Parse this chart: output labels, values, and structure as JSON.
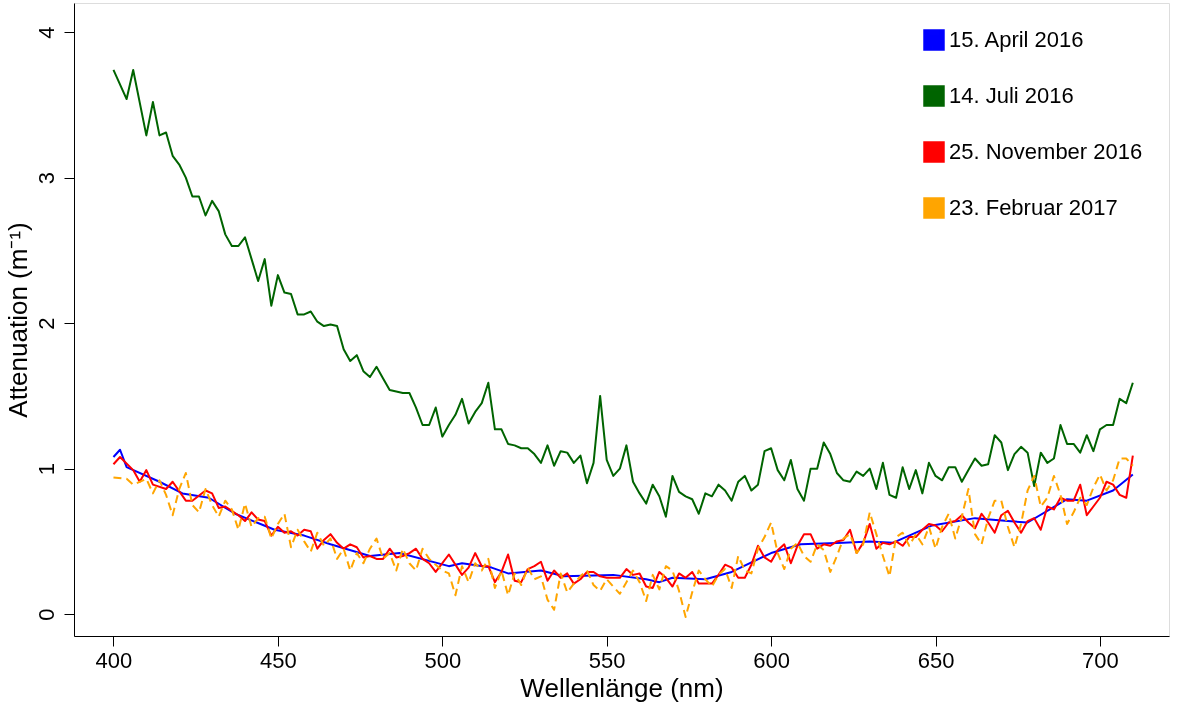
{
  "chart_data": {
    "type": "line",
    "xlabel": "Wellenlänge (nm)",
    "ylabel": "Attenuation (m⁻¹)",
    "xlim": [
      388,
      721
    ],
    "ylim": [
      -0.15,
      4.2
    ],
    "xticks": [
      400,
      450,
      500,
      550,
      600,
      650,
      700
    ],
    "yticks": [
      0,
      1,
      2,
      3,
      4
    ],
    "grid": false,
    "legend": "top right",
    "series": [
      {
        "name": "15. April 2016",
        "color": "#0000ff",
        "line_style": "solid",
        "x": [
          400,
          402,
          404,
          414,
          421,
          429,
          437,
          449,
          458,
          466,
          478,
          487,
          502,
          506,
          515,
          520,
          530,
          537,
          552,
          562,
          566,
          570,
          580,
          588,
          600,
          609,
          622,
          630,
          637,
          649,
          662,
          672,
          678,
          690,
          696,
          704,
          710
        ],
        "values": [
          1.08,
          1.13,
          1.01,
          0.91,
          0.83,
          0.8,
          0.69,
          0.58,
          0.54,
          0.48,
          0.4,
          0.42,
          0.33,
          0.35,
          0.32,
          0.28,
          0.3,
          0.26,
          0.27,
          0.24,
          0.22,
          0.25,
          0.24,
          0.29,
          0.42,
          0.48,
          0.49,
          0.5,
          0.49,
          0.61,
          0.66,
          0.64,
          0.63,
          0.79,
          0.78,
          0.85,
          0.96
        ]
      },
      {
        "name": "14. Juli 2016",
        "color": "#006400",
        "line_style": "solid",
        "x": [
          400,
          404,
          406,
          410,
          412,
          414,
          416,
          418,
          420,
          422,
          424,
          426,
          428,
          430,
          432,
          434,
          436,
          438,
          440,
          442,
          444,
          446,
          448,
          450,
          452,
          454,
          456,
          458,
          460,
          462,
          464,
          466,
          468,
          470,
          472,
          474,
          476,
          478,
          480,
          482,
          484,
          486,
          488,
          490,
          492,
          494,
          496,
          498,
          500,
          502,
          504,
          506,
          508,
          510,
          512,
          514,
          516,
          518,
          520,
          522,
          524,
          526,
          528,
          530,
          532,
          534,
          536,
          538,
          540,
          542,
          544,
          546,
          548,
          550,
          552,
          554,
          556,
          558,
          560,
          562,
          564,
          566,
          568,
          570,
          572,
          574,
          576,
          578,
          580,
          582,
          584,
          586,
          588,
          590,
          592,
          594,
          596,
          598,
          600,
          602,
          604,
          606,
          608,
          610,
          612,
          614,
          616,
          618,
          620,
          622,
          624,
          626,
          628,
          630,
          632,
          634,
          636,
          638,
          640,
          642,
          644,
          646,
          648,
          650,
          652,
          654,
          656,
          658,
          660,
          662,
          664,
          666,
          668,
          670,
          672,
          674,
          676,
          678,
          680,
          682,
          684,
          686,
          688,
          690,
          692,
          694,
          696,
          698,
          700,
          702,
          704,
          706,
          708,
          710
        ],
        "values": [
          3.74,
          3.54,
          3.74,
          3.29,
          3.52,
          3.29,
          3.31,
          3.15,
          3.09,
          3.0,
          2.87,
          2.87,
          2.74,
          2.84,
          2.77,
          2.61,
          2.53,
          2.53,
          2.59,
          2.44,
          2.29,
          2.44,
          2.12,
          2.33,
          2.21,
          2.2,
          2.06,
          2.06,
          2.08,
          2.01,
          1.98,
          1.99,
          1.98,
          1.82,
          1.74,
          1.78,
          1.67,
          1.63,
          1.7,
          1.62,
          1.54,
          1.53,
          1.52,
          1.52,
          1.42,
          1.3,
          1.3,
          1.42,
          1.22,
          1.3,
          1.37,
          1.48,
          1.31,
          1.39,
          1.45,
          1.59,
          1.27,
          1.27,
          1.17,
          1.16,
          1.14,
          1.14,
          1.1,
          1.04,
          1.16,
          1.02,
          1.12,
          1.11,
          1.04,
          1.09,
          0.9,
          1.04,
          1.5,
          1.06,
          0.95,
          1.0,
          1.16,
          0.91,
          0.83,
          0.76,
          0.89,
          0.81,
          0.67,
          0.95,
          0.84,
          0.81,
          0.79,
          0.69,
          0.83,
          0.81,
          0.89,
          0.85,
          0.78,
          0.91,
          0.95,
          0.85,
          0.89,
          1.12,
          1.14,
          0.99,
          0.92,
          1.06,
          0.86,
          0.78,
          1.0,
          1.0,
          1.18,
          1.1,
          0.97,
          0.92,
          0.91,
          0.98,
          0.95,
          1.0,
          0.86,
          1.04,
          0.82,
          0.8,
          1.01,
          0.86,
          0.99,
          0.83,
          1.04,
          0.95,
          0.92,
          1.01,
          1.01,
          0.91,
          0.99,
          1.07,
          1.02,
          1.03,
          1.23,
          1.18,
          0.99,
          1.1,
          1.15,
          1.11,
          0.88,
          1.11,
          1.04,
          1.07,
          1.3,
          1.17,
          1.17,
          1.11,
          1.23,
          1.12,
          1.27,
          1.3,
          1.3,
          1.48,
          1.45,
          1.59
        ]
      },
      {
        "name": "25. November 2016",
        "color": "#ff0000",
        "line_style": "solid",
        "x": [
          400,
          402,
          406,
          408,
          410,
          412,
          416,
          418,
          422,
          424,
          428,
          430,
          432,
          434,
          438,
          440,
          442,
          444,
          446,
          448,
          450,
          452,
          454,
          456,
          458,
          460,
          462,
          464,
          466,
          468,
          470,
          472,
          474,
          476,
          478,
          480,
          482,
          484,
          486,
          488,
          490,
          492,
          494,
          496,
          498,
          502,
          506,
          508,
          510,
          512,
          514,
          516,
          518,
          520,
          522,
          524,
          526,
          528,
          530,
          532,
          534,
          536,
          538,
          540,
          542,
          544,
          546,
          548,
          550,
          552,
          554,
          556,
          558,
          560,
          562,
          564,
          566,
          568,
          570,
          572,
          574,
          576,
          578,
          580,
          582,
          584,
          586,
          588,
          590,
          592,
          594,
          596,
          598,
          600,
          602,
          604,
          606,
          608,
          610,
          612,
          614,
          616,
          618,
          620,
          622,
          624,
          626,
          628,
          630,
          632,
          634,
          636,
          638,
          640,
          642,
          644,
          646,
          648,
          650,
          652,
          654,
          656,
          658,
          660,
          662,
          664,
          666,
          668,
          670,
          672,
          674,
          676,
          678,
          680,
          682,
          684,
          686,
          688,
          690,
          692,
          694,
          696,
          698,
          700,
          702,
          704,
          706,
          708,
          710
        ],
        "values": [
          1.03,
          1.08,
          0.99,
          0.91,
          0.99,
          0.89,
          0.86,
          0.91,
          0.78,
          0.78,
          0.85,
          0.83,
          0.73,
          0.74,
          0.68,
          0.64,
          0.7,
          0.65,
          0.64,
          0.54,
          0.6,
          0.56,
          0.57,
          0.54,
          0.58,
          0.57,
          0.45,
          0.51,
          0.55,
          0.49,
          0.45,
          0.48,
          0.46,
          0.39,
          0.4,
          0.38,
          0.38,
          0.45,
          0.39,
          0.4,
          0.42,
          0.45,
          0.38,
          0.35,
          0.29,
          0.41,
          0.27,
          0.32,
          0.42,
          0.33,
          0.33,
          0.22,
          0.29,
          0.41,
          0.23,
          0.22,
          0.31,
          0.33,
          0.36,
          0.23,
          0.3,
          0.25,
          0.28,
          0.21,
          0.24,
          0.29,
          0.29,
          0.26,
          0.25,
          0.25,
          0.25,
          0.31,
          0.27,
          0.28,
          0.19,
          0.18,
          0.29,
          0.25,
          0.19,
          0.28,
          0.25,
          0.29,
          0.21,
          0.21,
          0.21,
          0.27,
          0.34,
          0.32,
          0.25,
          0.25,
          0.34,
          0.47,
          0.39,
          0.36,
          0.44,
          0.48,
          0.35,
          0.47,
          0.55,
          0.55,
          0.45,
          0.48,
          0.47,
          0.5,
          0.51,
          0.58,
          0.42,
          0.49,
          0.62,
          0.45,
          0.49,
          0.48,
          0.5,
          0.47,
          0.53,
          0.53,
          0.58,
          0.62,
          0.61,
          0.57,
          0.63,
          0.64,
          0.68,
          0.63,
          0.59,
          0.69,
          0.63,
          0.56,
          0.68,
          0.71,
          0.63,
          0.56,
          0.64,
          0.66,
          0.58,
          0.74,
          0.72,
          0.8,
          0.78,
          0.78,
          0.89,
          0.68,
          0.74,
          0.8,
          0.91,
          0.89,
          0.82,
          0.8,
          1.09
        ]
      },
      {
        "name": "23. Februar 2017",
        "color": "#ffa500",
        "line_style": "dashed",
        "x": [
          400,
          404,
          406,
          410,
          412,
          414,
          416,
          418,
          420,
          422,
          424,
          426,
          428,
          430,
          432,
          434,
          436,
          438,
          440,
          442,
          444,
          446,
          448,
          450,
          452,
          454,
          456,
          458,
          460,
          462,
          464,
          466,
          468,
          470,
          472,
          474,
          476,
          478,
          480,
          482,
          484,
          486,
          488,
          490,
          492,
          494,
          496,
          498,
          500,
          502,
          504,
          506,
          508,
          510,
          512,
          514,
          516,
          518,
          520,
          522,
          524,
          526,
          528,
          530,
          532,
          534,
          536,
          538,
          540,
          542,
          544,
          546,
          548,
          550,
          552,
          554,
          556,
          558,
          560,
          562,
          564,
          566,
          568,
          570,
          572,
          574,
          576,
          578,
          580,
          582,
          584,
          586,
          588,
          590,
          592,
          594,
          596,
          598,
          600,
          602,
          604,
          606,
          608,
          610,
          612,
          614,
          616,
          618,
          620,
          622,
          624,
          626,
          628,
          630,
          632,
          634,
          636,
          638,
          640,
          642,
          644,
          646,
          648,
          650,
          652,
          654,
          656,
          658,
          660,
          662,
          664,
          666,
          668,
          670,
          672,
          674,
          676,
          678,
          680,
          682,
          684,
          686,
          688,
          690,
          692,
          694,
          696,
          698,
          700,
          702,
          704,
          706,
          708,
          710
        ],
        "values": [
          0.94,
          0.93,
          0.89,
          0.93,
          0.83,
          0.92,
          0.82,
          0.68,
          0.86,
          0.97,
          0.75,
          0.7,
          0.86,
          0.75,
          0.67,
          0.78,
          0.72,
          0.58,
          0.76,
          0.6,
          0.66,
          0.67,
          0.52,
          0.62,
          0.69,
          0.46,
          0.58,
          0.5,
          0.43,
          0.56,
          0.47,
          0.52,
          0.38,
          0.45,
          0.3,
          0.42,
          0.35,
          0.45,
          0.52,
          0.38,
          0.42,
          0.3,
          0.45,
          0.35,
          0.3,
          0.45,
          0.38,
          0.34,
          0.3,
          0.28,
          0.13,
          0.33,
          0.22,
          0.35,
          0.3,
          0.38,
          0.18,
          0.3,
          0.13,
          0.28,
          0.2,
          0.32,
          0.24,
          0.26,
          0.1,
          0.03,
          0.28,
          0.15,
          0.21,
          0.26,
          0.3,
          0.2,
          0.16,
          0.24,
          0.19,
          0.14,
          0.22,
          0.3,
          0.22,
          0.09,
          0.27,
          0.17,
          0.33,
          0.3,
          0.16,
          -0.02,
          0.15,
          0.3,
          0.24,
          0.19,
          0.27,
          0.31,
          0.18,
          0.4,
          0.3,
          0.28,
          0.45,
          0.53,
          0.63,
          0.42,
          0.31,
          0.45,
          0.49,
          0.4,
          0.36,
          0.48,
          0.44,
          0.29,
          0.4,
          0.52,
          0.55,
          0.42,
          0.48,
          0.7,
          0.55,
          0.4,
          0.26,
          0.53,
          0.56,
          0.47,
          0.55,
          0.48,
          0.6,
          0.45,
          0.6,
          0.69,
          0.52,
          0.67,
          0.86,
          0.55,
          0.48,
          0.66,
          0.78,
          0.78,
          0.6,
          0.46,
          0.62,
          0.85,
          0.95,
          0.74,
          0.8,
          0.95,
          0.82,
          0.62,
          0.7,
          0.8,
          0.75,
          0.87,
          0.96,
          0.85,
          0.92,
          1.07,
          1.07,
          1.02
        ]
      }
    ]
  }
}
